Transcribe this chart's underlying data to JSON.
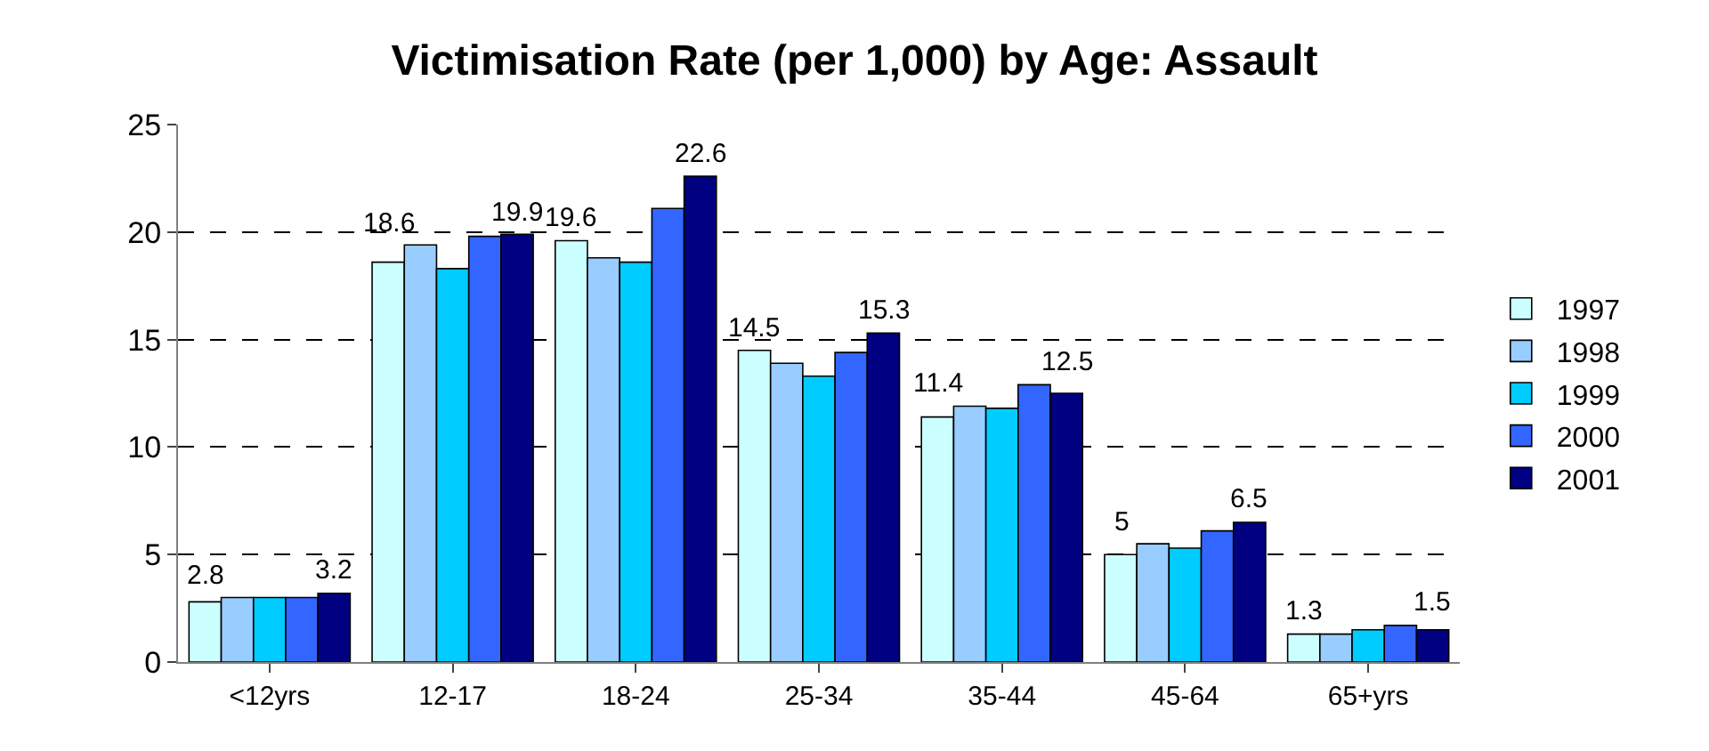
{
  "chart_data": {
    "type": "bar",
    "title": "Victimisation Rate (per 1,000) by Age: Assault",
    "categories": [
      "<12yrs",
      "12-17",
      "18-24",
      "25-34",
      "35-44",
      "45-64",
      "65+yrs"
    ],
    "series": [
      {
        "name": "1997",
        "color": "#ccffff",
        "values": [
          2.8,
          18.6,
          19.6,
          14.5,
          11.4,
          5,
          1.3
        ],
        "value_labels": [
          "2.8",
          "18.6",
          "19.6",
          "14.5",
          "11.4",
          "5",
          "1.3"
        ]
      },
      {
        "name": "1998",
        "color": "#99ccff",
        "values": [
          3.0,
          19.4,
          18.8,
          13.9,
          11.9,
          5.5,
          1.3
        ]
      },
      {
        "name": "1999",
        "color": "#00ccff",
        "values": [
          3.0,
          18.3,
          18.6,
          13.3,
          11.8,
          5.3,
          1.5
        ]
      },
      {
        "name": "2000",
        "color": "#3366ff",
        "values": [
          3.0,
          19.8,
          21.1,
          14.4,
          12.9,
          6.1,
          1.7
        ]
      },
      {
        "name": "2001",
        "color": "#000080",
        "values": [
          3.2,
          19.9,
          22.6,
          15.3,
          12.5,
          6.5,
          1.5
        ],
        "value_labels": [
          "3.2",
          "19.9",
          "22.6",
          "15.3",
          "12.5",
          "6.5",
          "1.5"
        ]
      }
    ],
    "ylim": [
      0,
      25
    ],
    "yticks": [
      0,
      5,
      10,
      15,
      20,
      25
    ],
    "grid": "y",
    "legend": "right"
  }
}
